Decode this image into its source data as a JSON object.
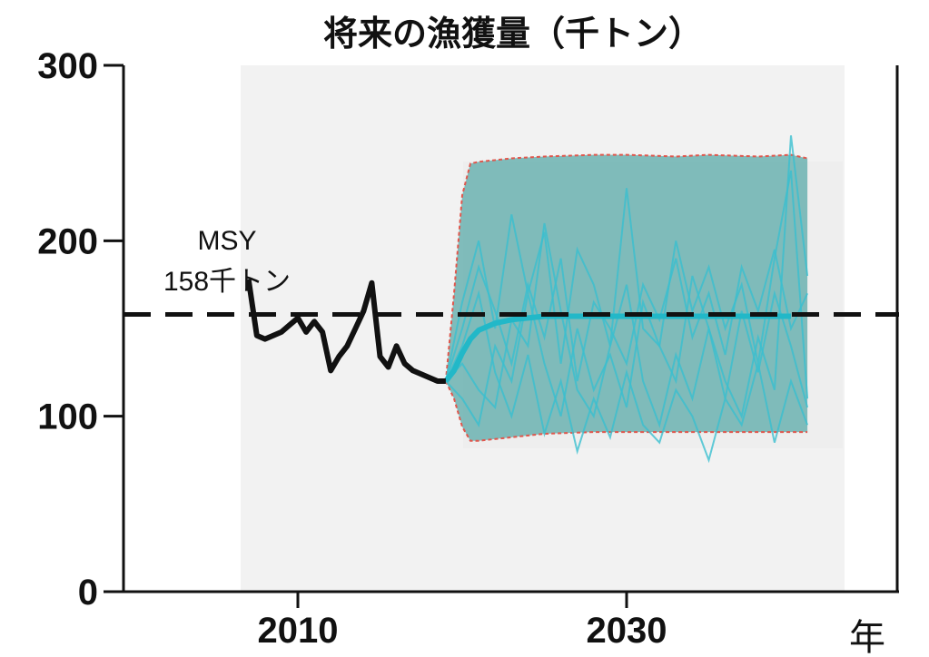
{
  "chart_data": {
    "type": "line",
    "title": "将来の漁獲量（千トン）",
    "xlabel": "年",
    "ylabel": "",
    "xlim": [
      2006,
      2041
    ],
    "ylim": [
      0,
      300
    ],
    "x_ticks": [
      2010,
      2030
    ],
    "y_ticks": [
      0,
      100,
      200,
      300
    ],
    "grid": false,
    "reference_line": {
      "value": 158,
      "label_line1": "MSY",
      "label_line2": "158千トン",
      "style": "dashed",
      "color": "#111111"
    },
    "colors": {
      "historical": "#111111",
      "projection_band_fill": "#5aaaa8",
      "projection_band_edge": "#e0574d",
      "projection_median": "#22b8c8",
      "simulations": "#39bfd0",
      "plot_background": "#f2f2f2"
    },
    "series": [
      {
        "name": "historical",
        "x": [
          2007,
          2007.5,
          2008,
          2008.5,
          2009,
          2009.5,
          2010,
          2010.5,
          2011,
          2011.5,
          2012,
          2012.5,
          2013,
          2013.5,
          2014,
          2014.5,
          2015,
          2015.5,
          2016,
          2016.5,
          2017,
          2017.5,
          2018,
          2018.5,
          2019
        ],
        "y": [
          178,
          146,
          144,
          146,
          148,
          152,
          156,
          148,
          154,
          148,
          126,
          134,
          140,
          150,
          160,
          176,
          134,
          128,
          140,
          130,
          126,
          124,
          122,
          120,
          120
        ]
      },
      {
        "name": "projection_median",
        "x": [
          2019,
          2019.5,
          2020,
          2020.5,
          2021,
          2022,
          2023,
          2024,
          2025,
          2030,
          2035,
          2040
        ],
        "y": [
          120,
          126,
          136,
          144,
          149,
          153,
          155,
          156,
          157,
          157,
          157,
          157
        ]
      },
      {
        "name": "band_upper",
        "x": [
          2019,
          2019.5,
          2020,
          2020.5,
          2021,
          2023,
          2025,
          2028,
          2030,
          2033,
          2035,
          2038,
          2040,
          2041
        ],
        "y": [
          120,
          170,
          226,
          244,
          245,
          247,
          248,
          249,
          249,
          248,
          249,
          248,
          249,
          247
        ]
      },
      {
        "name": "band_lower",
        "x": [
          2019,
          2019.5,
          2020,
          2020.5,
          2021,
          2023,
          2025,
          2028,
          2030,
          2033,
          2035,
          2038,
          2040,
          2041
        ],
        "y": [
          120,
          110,
          94,
          86,
          86,
          88,
          90,
          91,
          91,
          91,
          91,
          91,
          91,
          91
        ]
      },
      {
        "name": "sim_1",
        "x": [
          2019,
          2020,
          2021,
          2022,
          2023,
          2024,
          2025,
          2026,
          2027,
          2028,
          2029,
          2030,
          2031,
          2032,
          2033,
          2034,
          2035,
          2036,
          2037,
          2038,
          2039,
          2040,
          2041
        ],
        "y": [
          120,
          165,
          200,
          150,
          215,
          170,
          205,
          130,
          195,
          175,
          140,
          230,
          150,
          140,
          200,
          160,
          185,
          150,
          175,
          130,
          190,
          240,
          110
        ]
      },
      {
        "name": "sim_2",
        "x": [
          2019,
          2020,
          2021,
          2022,
          2023,
          2024,
          2025,
          2026,
          2027,
          2028,
          2029,
          2030,
          2031,
          2032,
          2033,
          2034,
          2035,
          2036,
          2037,
          2038,
          2039,
          2040,
          2041
        ],
        "y": [
          120,
          110,
          95,
          140,
          120,
          170,
          130,
          100,
          150,
          115,
          135,
          105,
          165,
          140,
          120,
          180,
          150,
          110,
          160,
          125,
          170,
          140,
          105
        ]
      },
      {
        "name": "sim_3",
        "x": [
          2019,
          2020,
          2021,
          2022,
          2023,
          2024,
          2025,
          2026,
          2027,
          2028,
          2029,
          2030,
          2031,
          2032,
          2033,
          2034,
          2035,
          2036,
          2037,
          2038,
          2039,
          2040,
          2041
        ],
        "y": [
          120,
          150,
          185,
          160,
          130,
          175,
          145,
          190,
          120,
          165,
          150,
          130,
          175,
          155,
          190,
          145,
          170,
          135,
          185,
          160,
          195,
          150,
          170
        ]
      },
      {
        "name": "sim_4",
        "x": [
          2019,
          2020,
          2021,
          2022,
          2023,
          2024,
          2025,
          2026,
          2027,
          2028,
          2029,
          2030,
          2031,
          2032,
          2033,
          2034,
          2035,
          2036,
          2037,
          2038,
          2039,
          2040,
          2041
        ],
        "y": [
          120,
          130,
          115,
          105,
          155,
          140,
          210,
          160,
          115,
          100,
          140,
          175,
          120,
          95,
          135,
          110,
          150,
          120,
          100,
          145,
          115,
          260,
          180
        ]
      },
      {
        "name": "sim_5",
        "x": [
          2019,
          2020,
          2021,
          2022,
          2023,
          2024,
          2025,
          2026,
          2027,
          2028,
          2029,
          2030,
          2031,
          2032,
          2033,
          2034,
          2035,
          2036,
          2037,
          2038,
          2039,
          2040,
          2041
        ],
        "y": [
          120,
          140,
          170,
          125,
          100,
          135,
          90,
          120,
          80,
          110,
          88,
          125,
          95,
          85,
          115,
          100,
          75,
          110,
          95,
          130,
          85,
          120,
          95
        ]
      }
    ]
  }
}
